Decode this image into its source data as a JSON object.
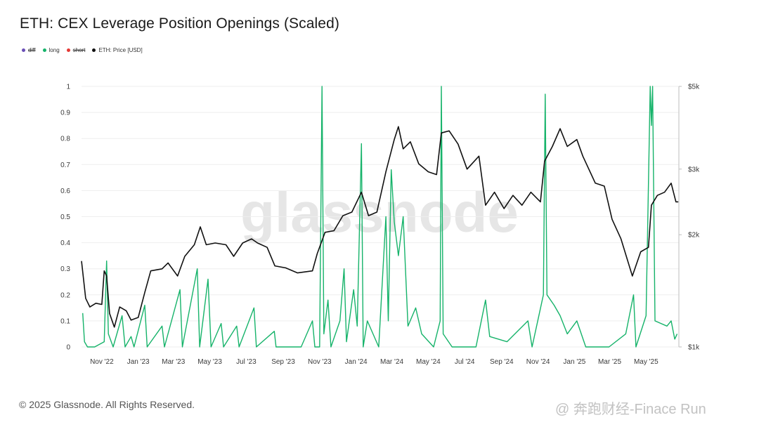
{
  "page": {
    "title": "ETH: CEX Leverage Position Openings (Scaled)",
    "copyright": "© 2025 Glassnode. All Rights Reserved.",
    "watermark": "glassnode",
    "source_watermark": "@ 奔跑财经-Finace Run"
  },
  "legend": [
    {
      "label": "diff",
      "color": "#6a4fb6",
      "strike": true
    },
    {
      "label": "long",
      "color": "#16b36a",
      "strike": false
    },
    {
      "label": "short",
      "color": "#e53935",
      "strike": true
    },
    {
      "label": "ETH: Price [USD]",
      "color": "#111111",
      "strike": false
    }
  ],
  "chart_data": {
    "type": "line",
    "title": "ETH: CEX Leverage Position Openings (Scaled)",
    "x_tick_labels": [
      "Nov '22",
      "Jan '23",
      "Mar '23",
      "May '23",
      "Jul '23",
      "Sep '23",
      "Nov '23",
      "Jan '24",
      "Mar '24",
      "May '24",
      "Jul '24",
      "Sep '24",
      "Nov '24",
      "Jan '25",
      "Mar '25",
      "May '25"
    ],
    "y_left_ticks": [
      "1",
      "0.9",
      "0.8",
      "0.7",
      "0.6",
      "0.5",
      "0.4",
      "0.3",
      "0.2",
      "0.1",
      "0"
    ],
    "y_left_range": [
      0,
      1
    ],
    "y_right_ticks": [
      "$5k",
      "$3k",
      "$2k",
      "$1k"
    ],
    "y_right_scale": "log",
    "y_right_range": [
      1000,
      5000
    ],
    "grid": true,
    "legend_position": "top-left",
    "x_range": [
      "2022-09-28",
      "2025-06-25"
    ],
    "series": [
      {
        "name": "long",
        "color": "#16b36a",
        "axis": "left",
        "points": [
          [
            "2022-09-30",
            0.13
          ],
          [
            "2022-10-03",
            0.02
          ],
          [
            "2022-10-08",
            0.0
          ],
          [
            "2022-10-20",
            0.0
          ],
          [
            "2022-11-05",
            0.02
          ],
          [
            "2022-11-09",
            0.33
          ],
          [
            "2022-11-12",
            0.05
          ],
          [
            "2022-11-20",
            0.0
          ],
          [
            "2022-12-05",
            0.12
          ],
          [
            "2022-12-10",
            0.0
          ],
          [
            "2022-12-20",
            0.04
          ],
          [
            "2022-12-25",
            0.0
          ],
          [
            "2023-01-12",
            0.16
          ],
          [
            "2023-01-16",
            0.0
          ],
          [
            "2023-02-10",
            0.08
          ],
          [
            "2023-02-14",
            0.0
          ],
          [
            "2023-03-12",
            0.22
          ],
          [
            "2023-03-16",
            0.0
          ],
          [
            "2023-04-10",
            0.3
          ],
          [
            "2023-04-14",
            0.0
          ],
          [
            "2023-04-28",
            0.26
          ],
          [
            "2023-05-03",
            0.0
          ],
          [
            "2023-05-20",
            0.09
          ],
          [
            "2023-05-24",
            0.0
          ],
          [
            "2023-06-15",
            0.08
          ],
          [
            "2023-06-19",
            0.0
          ],
          [
            "2023-07-14",
            0.15
          ],
          [
            "2023-07-18",
            0.0
          ],
          [
            "2023-08-17",
            0.06
          ],
          [
            "2023-08-20",
            0.0
          ],
          [
            "2023-10-01",
            0.0
          ],
          [
            "2023-10-20",
            0.1
          ],
          [
            "2023-10-24",
            0.0
          ],
          [
            "2023-11-01",
            0.0
          ],
          [
            "2023-11-05",
            1.0
          ],
          [
            "2023-11-08",
            0.05
          ],
          [
            "2023-11-15",
            0.18
          ],
          [
            "2023-11-20",
            0.0
          ],
          [
            "2023-12-05",
            0.1
          ],
          [
            "2023-12-12",
            0.3
          ],
          [
            "2023-12-16",
            0.02
          ],
          [
            "2023-12-28",
            0.22
          ],
          [
            "2024-01-03",
            0.08
          ],
          [
            "2024-01-10",
            0.78
          ],
          [
            "2024-01-13",
            0.0
          ],
          [
            "2024-01-20",
            0.1
          ],
          [
            "2024-02-08",
            0.0
          ],
          [
            "2024-02-20",
            0.5
          ],
          [
            "2024-02-24",
            0.1
          ],
          [
            "2024-02-29",
            0.68
          ],
          [
            "2024-03-05",
            0.48
          ],
          [
            "2024-03-12",
            0.35
          ],
          [
            "2024-03-20",
            0.5
          ],
          [
            "2024-03-28",
            0.08
          ],
          [
            "2024-04-10",
            0.15
          ],
          [
            "2024-04-20",
            0.05
          ],
          [
            "2024-05-10",
            0.0
          ],
          [
            "2024-05-21",
            0.1
          ],
          [
            "2024-05-23",
            1.0
          ],
          [
            "2024-05-26",
            0.05
          ],
          [
            "2024-06-10",
            0.0
          ],
          [
            "2024-07-20",
            0.0
          ],
          [
            "2024-08-05",
            0.18
          ],
          [
            "2024-08-12",
            0.04
          ],
          [
            "2024-09-10",
            0.02
          ],
          [
            "2024-10-15",
            0.1
          ],
          [
            "2024-10-22",
            0.0
          ],
          [
            "2024-11-10",
            0.2
          ],
          [
            "2024-11-13",
            0.97
          ],
          [
            "2024-11-16",
            0.2
          ],
          [
            "2024-11-28",
            0.16
          ],
          [
            "2024-12-08",
            0.12
          ],
          [
            "2024-12-20",
            0.05
          ],
          [
            "2025-01-05",
            0.1
          ],
          [
            "2025-01-20",
            0.0
          ],
          [
            "2025-02-28",
            0.0
          ],
          [
            "2025-03-28",
            0.05
          ],
          [
            "2025-04-10",
            0.2
          ],
          [
            "2025-04-14",
            0.0
          ],
          [
            "2025-05-01",
            0.12
          ],
          [
            "2025-05-08",
            1.0
          ],
          [
            "2025-05-10",
            0.85
          ],
          [
            "2025-05-12",
            1.0
          ],
          [
            "2025-05-16",
            0.1
          ],
          [
            "2025-06-05",
            0.08
          ],
          [
            "2025-06-12",
            0.1
          ],
          [
            "2025-06-18",
            0.03
          ],
          [
            "2025-06-22",
            0.05
          ]
        ]
      },
      {
        "name": "ETH: Price [USD]",
        "color": "#111111",
        "axis": "right",
        "points": [
          [
            "2022-09-28",
            1700
          ],
          [
            "2022-10-05",
            1350
          ],
          [
            "2022-10-12",
            1280
          ],
          [
            "2022-10-22",
            1310
          ],
          [
            "2022-11-01",
            1300
          ],
          [
            "2022-11-05",
            1600
          ],
          [
            "2022-11-09",
            1550
          ],
          [
            "2022-11-14",
            1230
          ],
          [
            "2022-11-22",
            1130
          ],
          [
            "2022-12-01",
            1280
          ],
          [
            "2022-12-12",
            1250
          ],
          [
            "2022-12-20",
            1180
          ],
          [
            "2023-01-01",
            1200
          ],
          [
            "2023-01-12",
            1400
          ],
          [
            "2023-01-22",
            1600
          ],
          [
            "2023-02-10",
            1620
          ],
          [
            "2023-02-20",
            1680
          ],
          [
            "2023-03-08",
            1550
          ],
          [
            "2023-03-20",
            1750
          ],
          [
            "2023-04-05",
            1880
          ],
          [
            "2023-04-15",
            2100
          ],
          [
            "2023-04-25",
            1880
          ],
          [
            "2023-05-10",
            1900
          ],
          [
            "2023-05-28",
            1880
          ],
          [
            "2023-06-10",
            1750
          ],
          [
            "2023-06-25",
            1900
          ],
          [
            "2023-07-10",
            1950
          ],
          [
            "2023-07-20",
            1900
          ],
          [
            "2023-08-05",
            1850
          ],
          [
            "2023-08-18",
            1650
          ],
          [
            "2023-09-05",
            1630
          ],
          [
            "2023-09-25",
            1580
          ],
          [
            "2023-10-20",
            1600
          ],
          [
            "2023-10-28",
            1780
          ],
          [
            "2023-11-10",
            2030
          ],
          [
            "2023-11-25",
            2050
          ],
          [
            "2023-12-10",
            2250
          ],
          [
            "2023-12-25",
            2300
          ],
          [
            "2024-01-10",
            2600
          ],
          [
            "2024-01-22",
            2250
          ],
          [
            "2024-02-05",
            2300
          ],
          [
            "2024-02-20",
            2950
          ],
          [
            "2024-03-05",
            3600
          ],
          [
            "2024-03-12",
            3900
          ],
          [
            "2024-03-20",
            3400
          ],
          [
            "2024-04-01",
            3550
          ],
          [
            "2024-04-15",
            3100
          ],
          [
            "2024-05-01",
            2950
          ],
          [
            "2024-05-15",
            2900
          ],
          [
            "2024-05-23",
            3750
          ],
          [
            "2024-06-05",
            3800
          ],
          [
            "2024-06-20",
            3500
          ],
          [
            "2024-07-05",
            3000
          ],
          [
            "2024-07-25",
            3250
          ],
          [
            "2024-08-05",
            2400
          ],
          [
            "2024-08-20",
            2600
          ],
          [
            "2024-09-05",
            2350
          ],
          [
            "2024-09-20",
            2550
          ],
          [
            "2024-10-05",
            2400
          ],
          [
            "2024-10-20",
            2600
          ],
          [
            "2024-11-05",
            2450
          ],
          [
            "2024-11-12",
            3150
          ],
          [
            "2024-11-25",
            3450
          ],
          [
            "2024-12-08",
            3850
          ],
          [
            "2024-12-20",
            3450
          ],
          [
            "2025-01-05",
            3600
          ],
          [
            "2025-01-15",
            3250
          ],
          [
            "2025-02-05",
            2750
          ],
          [
            "2025-02-20",
            2700
          ],
          [
            "2025-03-05",
            2200
          ],
          [
            "2025-03-20",
            1950
          ],
          [
            "2025-04-08",
            1550
          ],
          [
            "2025-04-22",
            1800
          ],
          [
            "2025-05-05",
            1850
          ],
          [
            "2025-05-10",
            2400
          ],
          [
            "2025-05-20",
            2550
          ],
          [
            "2025-06-01",
            2600
          ],
          [
            "2025-06-12",
            2750
          ],
          [
            "2025-06-20",
            2450
          ],
          [
            "2025-06-24",
            2450
          ]
        ]
      }
    ]
  }
}
